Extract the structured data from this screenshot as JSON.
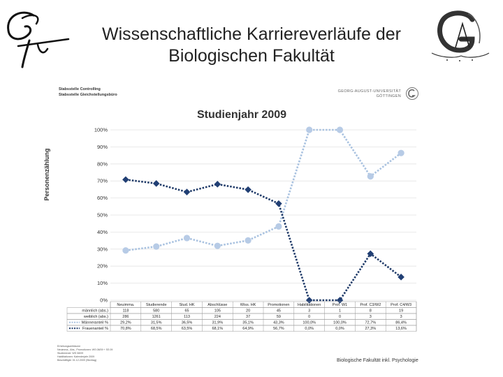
{
  "slide": {
    "title_line1": "Wissenschaftliche Karriereverläufe der",
    "title_line2": "Biologischen Fakultät"
  },
  "header": {
    "org_line1": "Stabsstelle Controlling",
    "org_line2": "Stabsstelle Gleichstellungsbüro",
    "univ_line1": "GEORG-AUGUST-UNIVERSITÄT",
    "univ_line2": "GÖTTINGEN"
  },
  "footer": {
    "notes": [
      "Erhebungszeiträume",
      "Neuimma., Abs., Promotionen: WS 08/09 + SS 09",
      "Studierende: WS 08/09",
      "Habilitationen: Kalenderjahr 2009",
      "Beschäftigte: 01.12.2009 (Stichtag)"
    ],
    "right": "Biologische Fakultät inkl. Psychologie"
  },
  "colors": {
    "men_line": "#a9c2e0",
    "men_marker": "#b7cbe6",
    "women_line": "#1f3a68",
    "women_marker": "#213f74",
    "grid": "#e3e3e3"
  },
  "chart_data": {
    "type": "line",
    "title": "Studienjahr 2009",
    "ylabel": "Personenzählung",
    "xlabel": "",
    "ylim": [
      0,
      100
    ],
    "yticks": [
      "0%",
      "10%",
      "20%",
      "30%",
      "40%",
      "50%",
      "60%",
      "70%",
      "80%",
      "90%",
      "100%"
    ],
    "categories": [
      "Neuimma.",
      "Studierende",
      "Stud. HK",
      "Abschlüsse",
      "Wiss. HK",
      "Promotionen",
      "Habilitationen",
      "Prof. W1",
      "Prof. C3/W2",
      "Prof. C4/W3"
    ],
    "series": [
      {
        "name": "Männeranteil %",
        "values": [
          29.2,
          31.5,
          36.5,
          31.9,
          35.1,
          43.3,
          100.0,
          100.0,
          72.7,
          86.4
        ]
      },
      {
        "name": "Frauenanteil %",
        "values": [
          70.8,
          68.5,
          63.5,
          68.1,
          64.9,
          56.7,
          0.0,
          0.0,
          27.3,
          13.6
        ]
      }
    ],
    "table": {
      "rows": [
        {
          "label": "männlich (abs.)",
          "cells": [
            "118",
            "580",
            "65",
            "105",
            "20",
            "45",
            "3",
            "1",
            "8",
            "19"
          ]
        },
        {
          "label": "weiblich (abs.)",
          "cells": [
            "286",
            "1261",
            "113",
            "224",
            "37",
            "59",
            "0",
            "0",
            "3",
            "3"
          ]
        },
        {
          "label": "Männeranteil %",
          "cells": [
            "29,2%",
            "31,5%",
            "36,5%",
            "31,9%",
            "35,1%",
            "43,3%",
            "100,0%",
            "100,0%",
            "72,7%",
            "86,4%"
          ]
        },
        {
          "label": "Frauenanteil %",
          "cells": [
            "70,8%",
            "68,5%",
            "63,5%",
            "68,1%",
            "64,9%",
            "56,7%",
            "0,0%",
            "0,0%",
            "27,3%",
            "13,6%"
          ]
        }
      ]
    }
  }
}
